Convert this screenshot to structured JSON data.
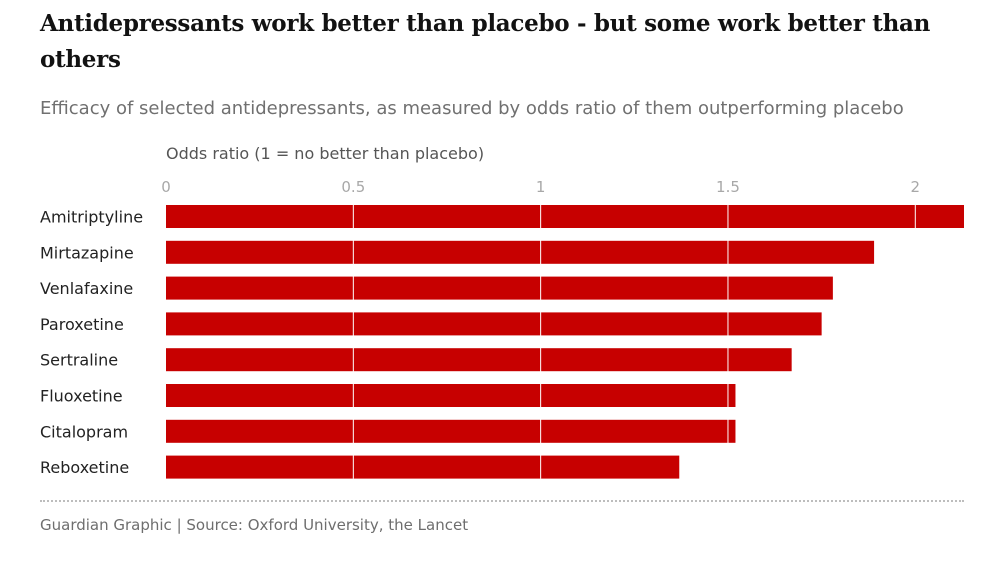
{
  "header": {
    "title": "Antidepressants work better than placebo - but some work better than others",
    "subtitle": "Efficacy of selected antidepressants, as measured by odds ratio of them outperforming placebo"
  },
  "footer": {
    "source": "Guardian Graphic | Source: Oxford University, the Lancet"
  },
  "colors": {
    "bar": "#c70000",
    "gridline": "#ffffff",
    "tick_label": "#a8a8a8"
  },
  "chart_data": {
    "type": "bar",
    "orientation": "horizontal",
    "title": "Antidepressants work better than placebo - but some work better than others",
    "subtitle": "Efficacy of selected antidepressants, as measured by odds ratio of them outperforming placebo",
    "xlabel": "Odds ratio (1 = no better than placebo)",
    "ylabel": "",
    "categories": [
      "Amitriptyline",
      "Mirtazapine",
      "Venlafaxine",
      "Paroxetine",
      "Sertraline",
      "Fluoxetine",
      "Citalopram",
      "Reboxetine"
    ],
    "values": [
      2.13,
      1.89,
      1.78,
      1.75,
      1.67,
      1.52,
      1.52,
      1.37
    ],
    "xlim": [
      0,
      2.13
    ],
    "xticks": [
      0,
      0.5,
      1,
      1.5,
      2
    ],
    "xtick_labels": [
      "0",
      "0.5",
      "1",
      "1.5",
      "2"
    ],
    "grid": true,
    "legend": "none"
  }
}
